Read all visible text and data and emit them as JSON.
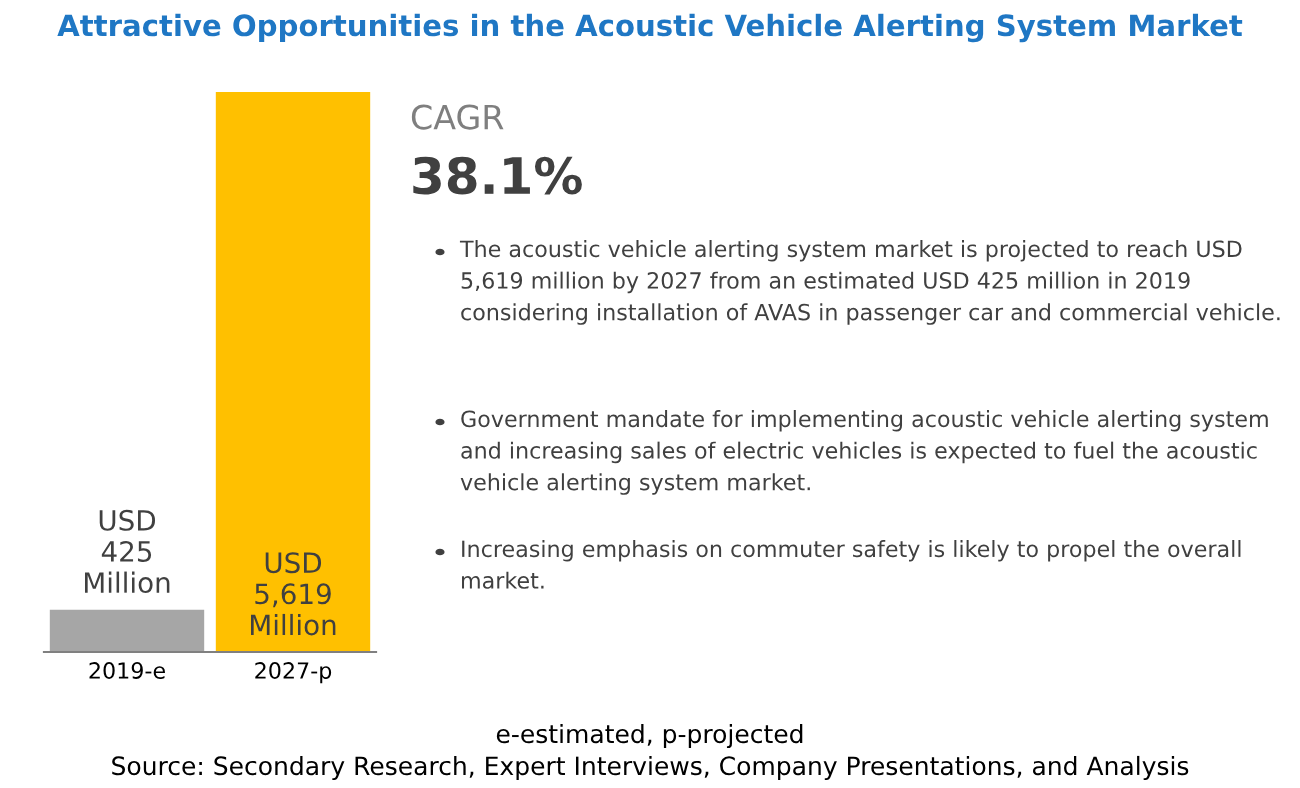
{
  "chart_data": {
    "type": "bar",
    "title": "Attractive Opportunities in the Acoustic Vehicle Alerting System Market",
    "categories": [
      "2019-e",
      "2027-p"
    ],
    "values": [
      425,
      5619
    ],
    "colors": [
      "#a6a6a6",
      "#ffc000"
    ],
    "value_labels": [
      "USD\n425\nMillion",
      "USD\n5,619\nMillion"
    ],
    "annotations": [
      "CAGR",
      "38.1%",
      "The acoustic vehicle alerting system market is projected to reach USD 5,619 million by 2027 from an estimated USD 425 million in 2019 considering installation of AVAS in passenger car and commercial vehicle.",
      "Government mandate for implementing acoustic vehicle alerting system and increasing sales of electric vehicles is expected to fuel the acoustic vehicle alerting system market.",
      "Increasing emphasis on commuter safety is likely to propel the overall market.",
      "e-estimated, p-projected",
      "Source: Secondary Research, Expert Interviews, Company Presentations, and Analysis"
    ]
  }
}
